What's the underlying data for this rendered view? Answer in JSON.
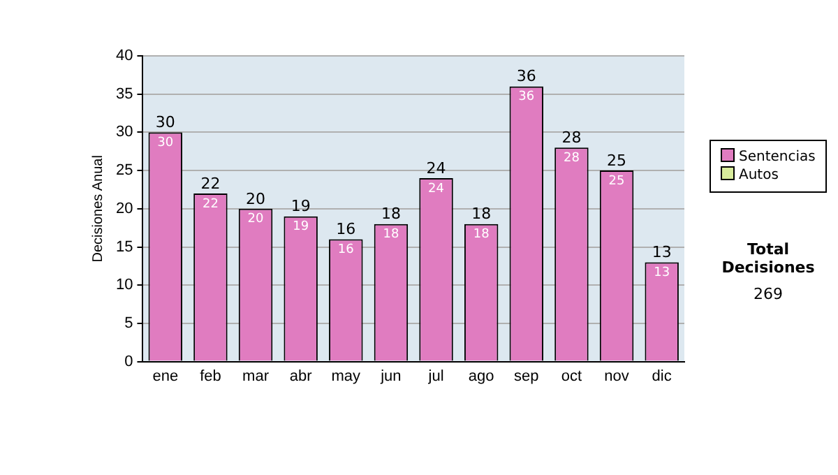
{
  "chart_data": {
    "type": "bar",
    "stacked": true,
    "ylabel": "Decisiones Anual",
    "categories": [
      "ene",
      "feb",
      "mar",
      "abr",
      "may",
      "jun",
      "jul",
      "ago",
      "sep",
      "oct",
      "nov",
      "dic"
    ],
    "series": [
      {
        "name": "Sentencias",
        "color": "#e07cc0",
        "values": [
          30,
          22,
          20,
          19,
          16,
          18,
          24,
          18,
          36,
          28,
          25,
          13
        ],
        "value_labels": [
          "30",
          "22",
          "20",
          "19",
          "16",
          "18",
          "24",
          "18",
          "36",
          "28",
          "25",
          "13"
        ]
      },
      {
        "name": "Autos",
        "color": "#d8ec9c",
        "values": [
          0,
          0,
          0,
          0,
          0,
          0,
          0,
          0,
          0,
          0,
          0,
          0
        ]
      }
    ],
    "totals": [
      "30",
      "22",
      "20",
      "19",
      "16",
      "18",
      "24",
      "18",
      "36",
      "28",
      "25",
      "13"
    ],
    "ylim": [
      0,
      40
    ],
    "yticks": [
      0,
      5,
      10,
      15,
      20,
      25,
      30,
      35,
      40
    ],
    "grid": "y",
    "legend": "right",
    "annotations": [
      "Total Decisiones",
      "269"
    ]
  }
}
